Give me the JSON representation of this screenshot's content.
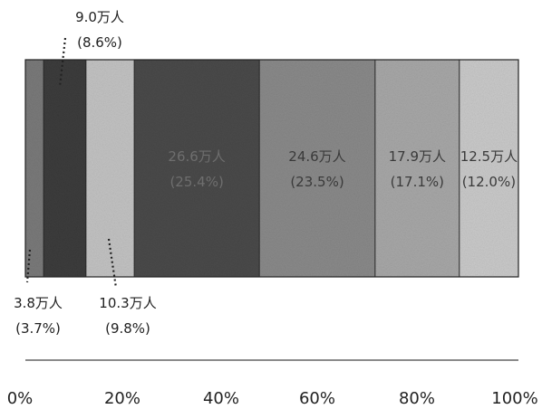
{
  "chart_data": {
    "type": "bar",
    "orientation": "horizontal-stacked-100",
    "x_ticks": [
      "0%",
      "20%",
      "40%",
      "60%",
      "80%",
      "100%"
    ],
    "xlim": [
      0,
      100
    ],
    "segments": [
      {
        "value": 3.8,
        "share": 3.7,
        "value_label": "3.8万人",
        "share_label": "(3.7%)",
        "color": "#7a7a7a"
      },
      {
        "value": 9.0,
        "share": 8.6,
        "value_label": "9.0万人",
        "share_label": "(8.6%)",
        "color": "#3c3c3c"
      },
      {
        "value": 10.3,
        "share": 9.8,
        "value_label": "10.3万人",
        "share_label": "(9.8%)",
        "color": "#c3c3c3"
      },
      {
        "value": 26.6,
        "share": 25.4,
        "value_label": "26.6万人",
        "share_label": "(25.4%)",
        "color": "#4a4a4a"
      },
      {
        "value": 24.6,
        "share": 23.5,
        "value_label": "24.6万人",
        "share_label": "(23.5%)",
        "color": "#8a8a8a"
      },
      {
        "value": 17.9,
        "share": 17.1,
        "value_label": "17.9万人",
        "share_label": "(17.1%)",
        "color": "#a8a8a8"
      },
      {
        "value": 12.5,
        "share": 12.0,
        "value_label": "12.5万人",
        "share_label": "(12.0%)",
        "color": "#cacaca"
      }
    ]
  }
}
